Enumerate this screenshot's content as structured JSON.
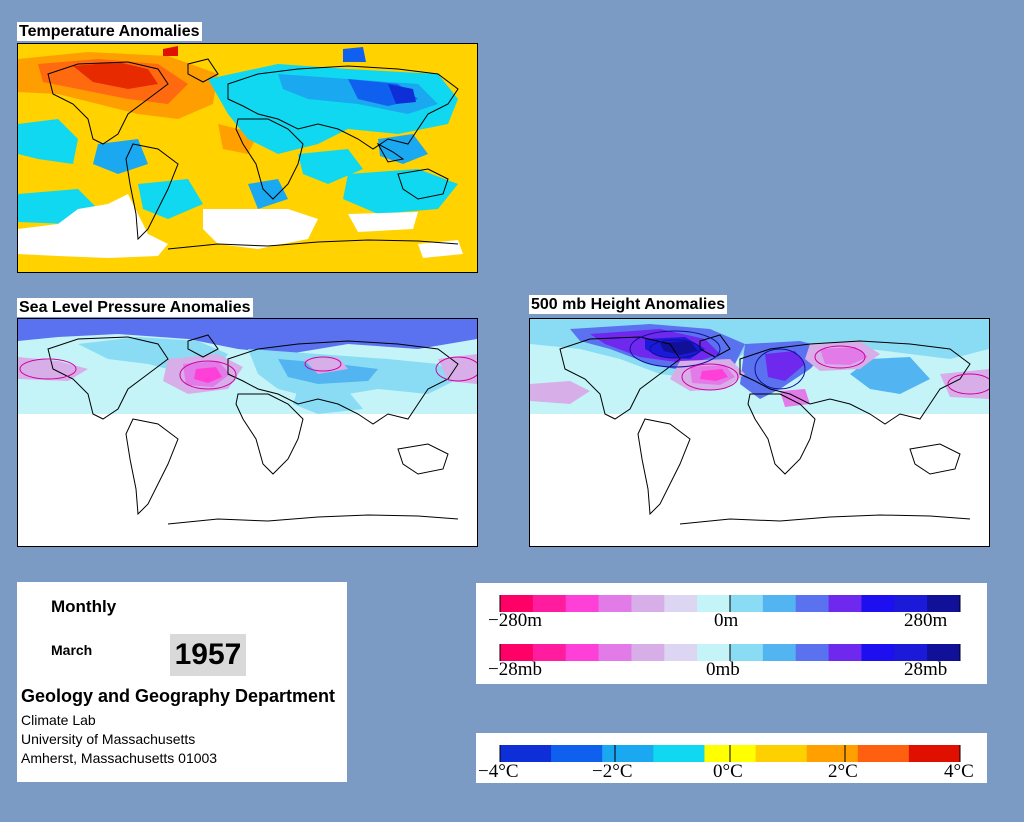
{
  "maps": {
    "temperature": {
      "title": "Temperature Anomalies"
    },
    "slp": {
      "title": "Sea Level Pressure Anomalies"
    },
    "height": {
      "title": "500 mb Height Anomalies"
    }
  },
  "info": {
    "period": "Monthly",
    "month": "March",
    "year": "1957",
    "department": "Geology and Geography Department",
    "lab": "Climate Lab",
    "university": "University of Massachusetts",
    "address": "Amherst, Massachusetts 01003"
  },
  "legends": {
    "height": {
      "labels": [
        "−280m",
        "0m",
        "280m"
      ]
    },
    "pressure": {
      "labels": [
        "−28mb",
        "0mb",
        "28mb"
      ]
    },
    "temperature": {
      "labels": [
        "−4°C",
        "−2°C",
        "0°C",
        "2°C",
        "4°C"
      ]
    }
  },
  "colors": {
    "background": "#7b9ac4",
    "anomaly_scale": [
      "#ff0066",
      "#ff1c9e",
      "#ff40d8",
      "#e27be8",
      "#d8aee8",
      "#dcd6f2",
      "#c4f4f8",
      "#8adcf4",
      "#52b4f0",
      "#5a72f0",
      "#6f28ee",
      "#1e0ff0",
      "#1a1ad8",
      "#101098"
    ],
    "temperature_scale": [
      "#0e2fd8",
      "#1060f0",
      "#1aa8f0",
      "#10d8f0",
      "#ffff00",
      "#ffd000",
      "#ffa000",
      "#ff6010",
      "#e01000"
    ]
  }
}
